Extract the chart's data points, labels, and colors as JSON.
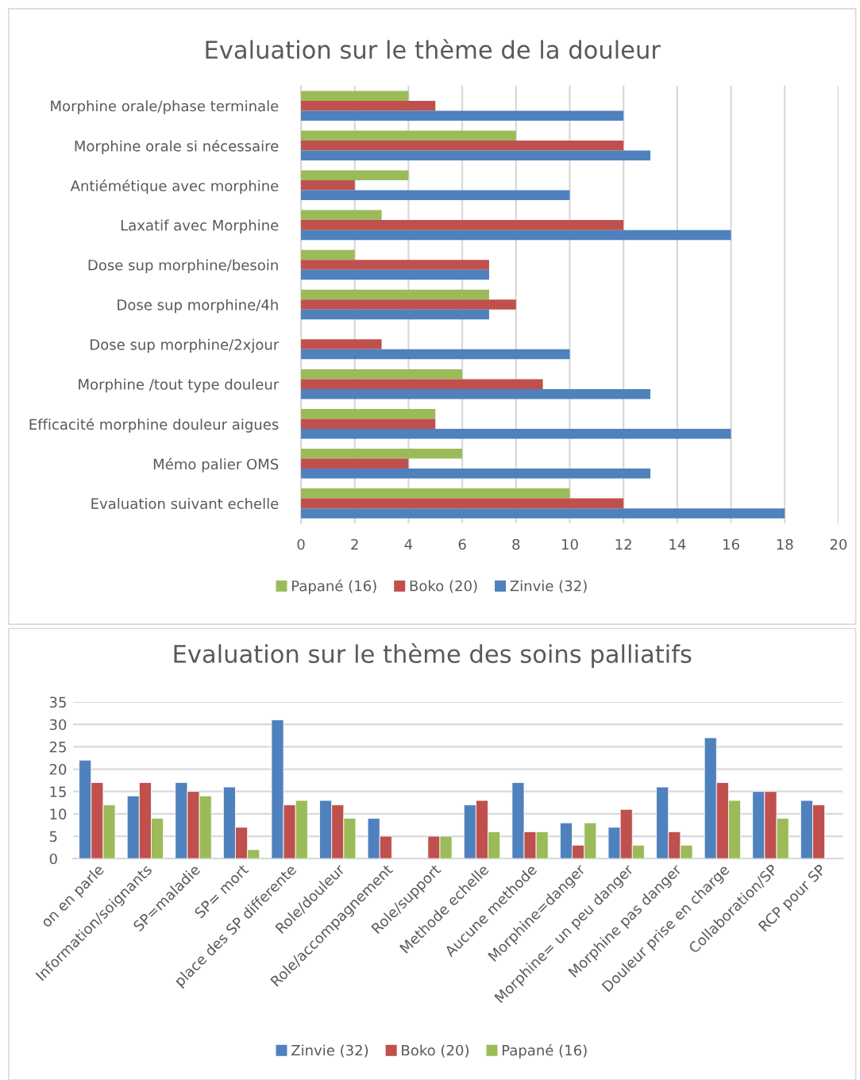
{
  "chart_data": [
    {
      "type": "bar",
      "orientation": "horizontal",
      "title": "Evaluation sur le thème de la douleur",
      "categories": [
        "Morphine orale/phase terminale",
        "Morphine orale si nécessaire",
        "Antiémétique avec morphine",
        "Laxatif avec Morphine",
        "Dose sup morphine/besoin",
        "Dose sup morphine/4h",
        "Dose sup morphine/2xjour",
        "Morphine /tout type douleur",
        "Efficacité morphine douleur aigues",
        "Mémo palier OMS",
        "Evaluation suivant echelle"
      ],
      "series": [
        {
          "name": "Papané (16)",
          "color": "#9bbb59",
          "values": [
            4,
            8,
            4,
            3,
            2,
            7,
            null,
            6,
            5,
            6,
            10
          ]
        },
        {
          "name": "Boko (20)",
          "color": "#c0504d",
          "values": [
            5,
            12,
            2,
            12,
            7,
            8,
            3,
            9,
            5,
            4,
            12
          ]
        },
        {
          "name": "Zinvie (32)",
          "color": "#4f81bd",
          "values": [
            12,
            13,
            10,
            16,
            7,
            7,
            10,
            13,
            16,
            13,
            18
          ]
        }
      ],
      "xlim": [
        0,
        20
      ],
      "xticks": [
        0,
        2,
        4,
        6,
        8,
        10,
        12,
        14,
        16,
        18,
        20
      ],
      "grid": "x",
      "legend": "bottom"
    },
    {
      "type": "bar",
      "title": "Evaluation sur le thème des soins palliatifs",
      "categories": [
        "on en parle",
        "Information/soignants",
        "SP=maladie",
        "SP= mort",
        "place des SP differente",
        "Role/douleur",
        "Role/accompagnement",
        "Role/support",
        "Methode echelle",
        "Aucune methode",
        "Morphine=danger",
        "Morphine= un peu danger",
        "Morphine pas danger",
        "Douleur prise en charge",
        "Collaboration/SP",
        "RCP pour SP"
      ],
      "series": [
        {
          "name": "Zinvie (32)",
          "color": "#4f81bd",
          "values": [
            22,
            14,
            17,
            16,
            31,
            13,
            9,
            null,
            12,
            17,
            8,
            7,
            16,
            27,
            15,
            13
          ]
        },
        {
          "name": "Boko (20)",
          "color": "#c0504d",
          "values": [
            17,
            17,
            15,
            7,
            12,
            12,
            5,
            5,
            13,
            6,
            3,
            11,
            6,
            17,
            15,
            12
          ]
        },
        {
          "name": "Papané (16)",
          "color": "#9bbb59",
          "values": [
            12,
            9,
            14,
            2,
            13,
            9,
            null,
            5,
            6,
            6,
            8,
            3,
            3,
            13,
            9,
            null
          ]
        }
      ],
      "ylim": [
        0,
        35
      ],
      "yticks": [
        0,
        5,
        10,
        15,
        20,
        25,
        30,
        35
      ],
      "grid": "y",
      "legend": "bottom"
    }
  ]
}
